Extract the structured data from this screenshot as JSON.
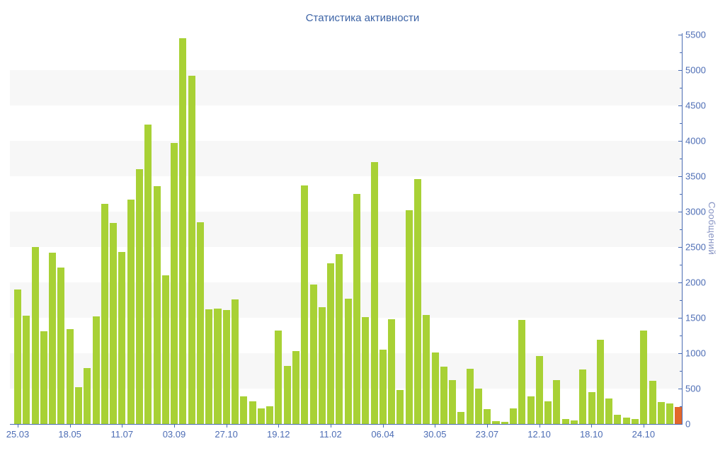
{
  "title": "Статистика активности",
  "colors": {
    "bar": "#a8d135",
    "bar_highlight": "#e2672b",
    "axis": "#4a6cb3",
    "tick_label": "#4d6db5",
    "title": "#3d64a6",
    "y_axis_title": "#8693c3",
    "stripe": "#f7f7f7",
    "background": "#ffffff"
  },
  "y_axis": {
    "label": "Сообщений",
    "min": 0,
    "max": 5500,
    "major_step": 500,
    "minor_step": 250,
    "tick_labels": [
      "0",
      "500",
      "1000",
      "1500",
      "2000",
      "2500",
      "3000",
      "3500",
      "4000",
      "4500",
      "5000",
      "5500"
    ]
  },
  "x_axis": {
    "tick_labels": [
      "25.03",
      "18.05",
      "11.07",
      "03.09",
      "27.10",
      "19.12",
      "11.02",
      "06.04",
      "30.05",
      "23.07",
      "12.10",
      "18.10",
      "24.10"
    ],
    "tick_bar_indices": [
      0,
      6,
      12,
      18,
      24,
      30,
      36,
      42,
      48,
      54,
      60,
      66,
      72
    ]
  },
  "chart_data": {
    "type": "bar",
    "title": "Статистика активности",
    "xlabel": "",
    "ylabel": "Сообщений",
    "ylim": [
      0,
      5500
    ],
    "grid": "horizontal-stripes-every-500",
    "legend": "none",
    "bar_count": 77,
    "values": [
      1900,
      1530,
      2500,
      1310,
      2420,
      2210,
      1340,
      520,
      790,
      1520,
      3110,
      2840,
      2430,
      3170,
      3600,
      4230,
      3360,
      2100,
      3970,
      5450,
      4920,
      2850,
      1620,
      1630,
      1610,
      1760,
      390,
      320,
      220,
      250,
      1320,
      820,
      1030,
      3370,
      1970,
      1650,
      2270,
      2400,
      1770,
      3250,
      1510,
      3700,
      1050,
      1480,
      480,
      3020,
      3460,
      1540,
      1010,
      810,
      620,
      170,
      780,
      500,
      210,
      40,
      30,
      220,
      1470,
      390,
      960,
      320,
      620,
      70,
      50,
      770,
      450,
      1190,
      360,
      130,
      90,
      70,
      1320,
      610,
      310,
      290,
      240
    ],
    "highlight_bar_index": 76,
    "highlight_bar_color": "#e2672b",
    "x_tick_labels": [
      "25.03",
      "18.05",
      "11.07",
      "03.09",
      "27.10",
      "19.12",
      "11.02",
      "06.04",
      "30.05",
      "23.07",
      "12.10",
      "18.10",
      "24.10"
    ],
    "x_tick_bar_indices": [
      0,
      6,
      12,
      18,
      24,
      30,
      36,
      42,
      48,
      54,
      60,
      66,
      72
    ]
  }
}
